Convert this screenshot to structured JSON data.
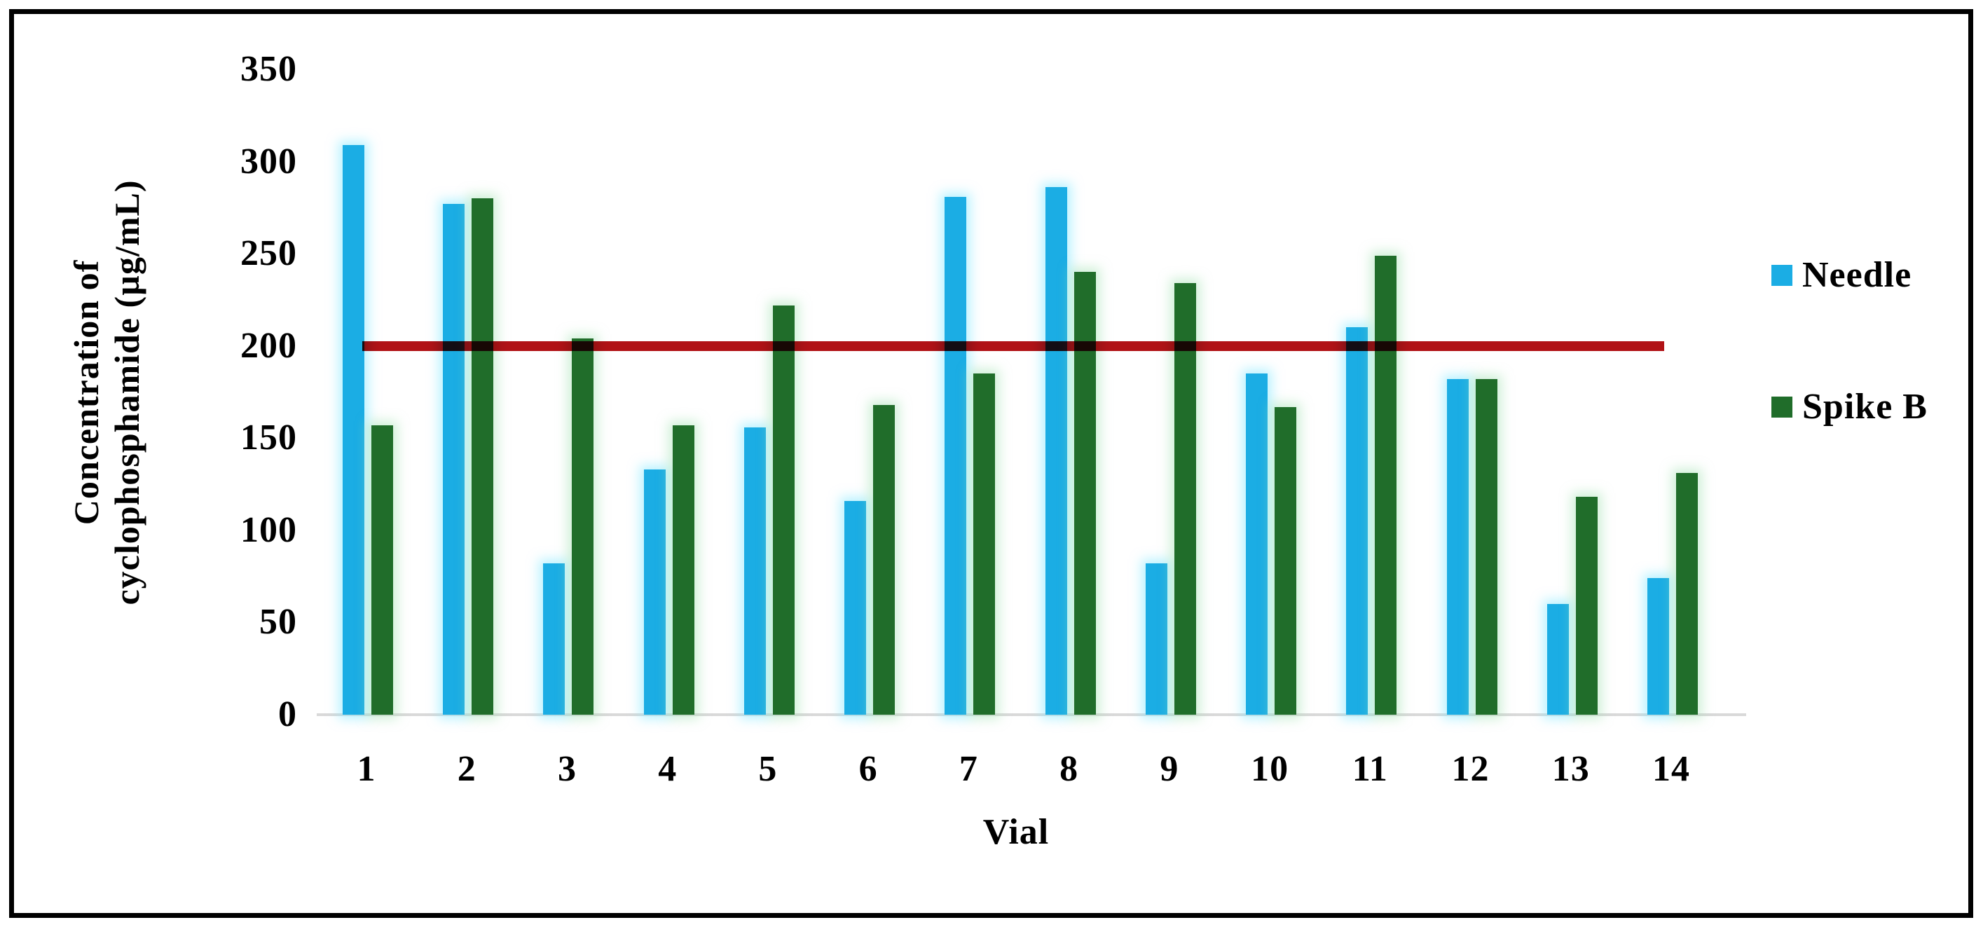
{
  "chart_data": {
    "type": "bar",
    "title": "",
    "categories": [
      "1",
      "2",
      "3",
      "4",
      "5",
      "6",
      "7",
      "8",
      "9",
      "10",
      "11",
      "12",
      "13",
      "14"
    ],
    "series": [
      {
        "name": "Needle",
        "color": "#1bade4",
        "values": [
          309,
          277,
          82,
          133,
          156,
          116,
          281,
          286,
          82,
          185,
          210,
          182,
          60,
          74
        ]
      },
      {
        "name": "Spike B",
        "color": "#206d2a",
        "values": [
          157,
          280,
          204,
          157,
          222,
          168,
          185,
          240,
          234,
          167,
          249,
          182,
          118,
          131
        ]
      }
    ],
    "reference_line": {
      "value": 200,
      "color": "#b11216"
    },
    "xlabel": "Vial",
    "ylabel_line1": "Concentration of",
    "ylabel_line2": "cyclophosphamide (µg/mL)",
    "ylim": [
      0,
      350
    ],
    "ytick_step": 50,
    "yticks": [
      "0",
      "50",
      "100",
      "150",
      "200",
      "250",
      "300",
      "350"
    ],
    "grid": false,
    "legend_position": "right",
    "axis_line_color": "#d9d9d9",
    "frame_border_color": "#000000",
    "background_color": "#ffffff",
    "text_color": "#000000"
  }
}
